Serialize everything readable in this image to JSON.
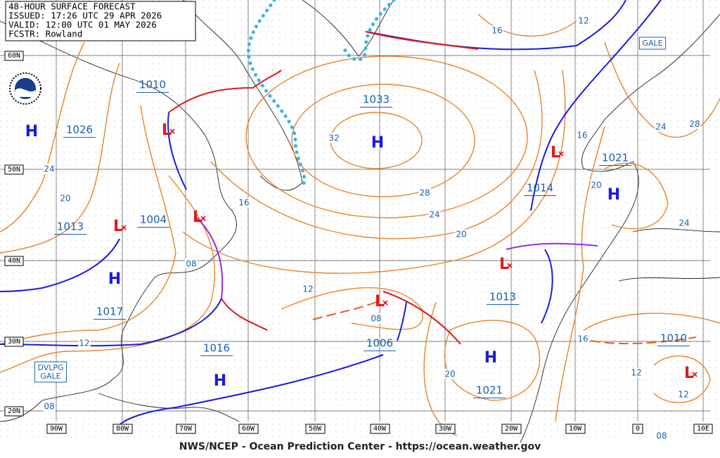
{
  "header": {
    "lines": [
      "48-HOUR SURFACE FORECAST",
      "ISSUED: 17:26 UTC 29 APR 2026",
      "VALID:  12:00 UTC 01 MAY 2026",
      "FCSTR:  Rowland"
    ]
  },
  "latitude_labels": [
    "60N",
    "50N",
    "40N",
    "30N",
    "20N"
  ],
  "longitude_labels": [
    "90W",
    "80W",
    "70W",
    "60W",
    "50W",
    "40W",
    "30W",
    "20W",
    "10W",
    "0",
    "10E"
  ],
  "pressure_values": [
    "1010",
    "1026",
    "1033",
    "1004",
    "1013",
    "1017",
    "1016",
    "1006",
    "1013",
    "1014",
    "1021",
    "1010",
    "1021"
  ],
  "high_symbols": [
    "H",
    "H",
    "H",
    "H",
    "H",
    "H"
  ],
  "low_symbols": [
    "L",
    "L",
    "L",
    "L",
    "L",
    "L",
    "L"
  ],
  "isobar_labels": [
    "16",
    "12",
    "32",
    "28",
    "24",
    "20",
    "16",
    "08",
    "12",
    "08",
    "12",
    "24",
    "20",
    "16",
    "24",
    "28",
    "20",
    "24",
    "16",
    "12",
    "20",
    "12",
    "08",
    "08"
  ],
  "warnings": [
    "GALE",
    "DVLPG GALE"
  ],
  "footer": "NWS/NCEP - Ocean Prediction Center - https://ocean.weather.gov"
}
